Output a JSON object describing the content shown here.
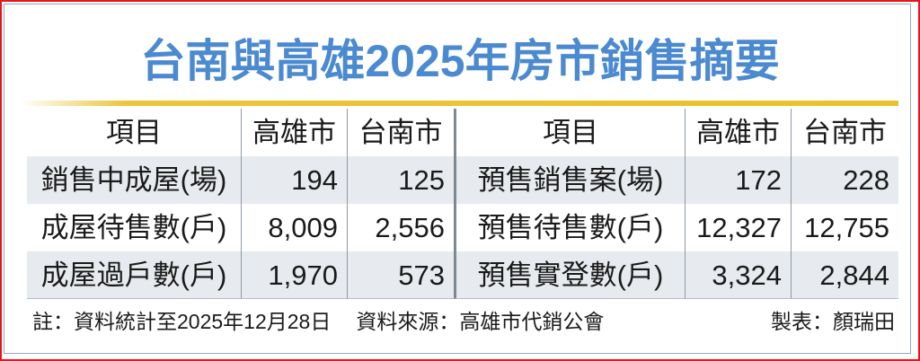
{
  "title": "台南與高雄2025年房市銷售摘要",
  "colors": {
    "title": "#4b8ad0",
    "rule": "#e9c12a",
    "border": "#e8141c",
    "row_shade": "#e7eaee"
  },
  "chart_data": {
    "type": "table",
    "title": "台南與高雄2025年房市銷售摘要",
    "headers": [
      "項目",
      "高雄市",
      "台南市",
      "項目",
      "高雄市",
      "台南市"
    ],
    "rows": [
      [
        "銷售中成屋(場)",
        "194",
        "125",
        "預售銷售案(場)",
        "172",
        "228"
      ],
      [
        "成屋待售數(戶)",
        "8,009",
        "2,556",
        "預售待售數(戶)",
        "12,327",
        "12,755"
      ],
      [
        "成屋過戶數(戶)",
        "1,970",
        "573",
        "預售實登數(戶)",
        "3,324",
        "2,844"
      ]
    ]
  },
  "footer": {
    "note": "註：資料統計至2025年12月28日",
    "source": "資料來源：高雄市代銷公會",
    "credit": "製表：顏瑞田"
  }
}
